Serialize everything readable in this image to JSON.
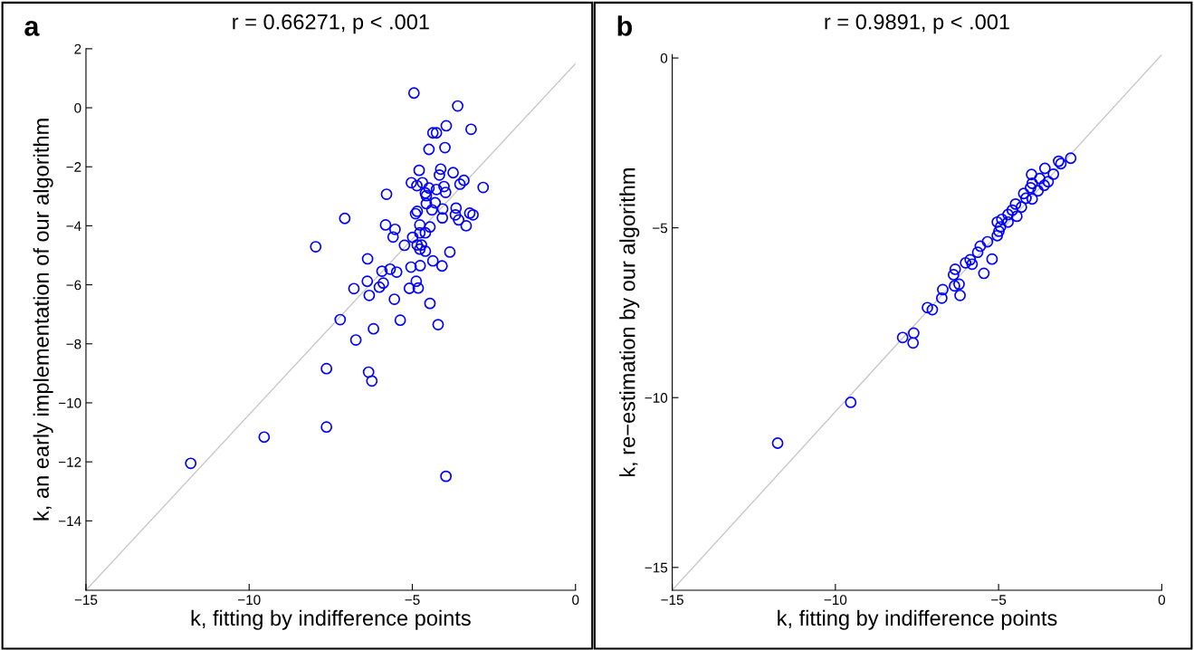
{
  "chart_data": [
    {
      "type": "scatter",
      "title": "r = 0.66271, p < .001",
      "xlabel": "k, fitting by indifference points",
      "ylabel": "k, an early implementation of our algorithm",
      "annotations": [
        "a"
      ],
      "grid": false,
      "xlim": [
        -15,
        0
      ],
      "ylim": [
        -16.35,
        2
      ],
      "xticks": [
        {
          "value": -15,
          "label": "−15"
        },
        {
          "value": -10,
          "label": "−10"
        },
        {
          "value": -5,
          "label": "−5"
        },
        {
          "value": 0,
          "label": "0"
        }
      ],
      "yticks": [
        {
          "value": -14,
          "label": "−14"
        },
        {
          "value": -12,
          "label": "−12"
        },
        {
          "value": -10,
          "label": "−10"
        },
        {
          "value": -8,
          "label": "−8"
        },
        {
          "value": -6,
          "label": "−6"
        },
        {
          "value": -4,
          "label": "−4"
        },
        {
          "value": -2,
          "label": "−2"
        },
        {
          "value": 0,
          "label": "0"
        },
        {
          "value": 2,
          "label": "2"
        }
      ],
      "series": [
        {
          "type": "line",
          "marker": "none",
          "color": "#c8c8c8",
          "x": [
            -15,
            0
          ],
          "values": [
            -16.35,
            1.5
          ]
        },
        {
          "marker": "circle",
          "color": "#0000ff",
          "x": [
            -4.95,
            -3.61,
            -3.96,
            -3.2,
            -4.37,
            -4.26,
            -4.49,
            -4.0,
            -4.79,
            -4.13,
            -4.17,
            -3.75,
            -3.42,
            -3.54,
            -2.83,
            -5.03,
            -4.86,
            -4.69,
            -5.79,
            -4.6,
            -4.49,
            -4.26,
            -4.03,
            -3.98,
            -4.57,
            -4.57,
            -4.3,
            -4.4,
            -4.07,
            -3.66,
            -3.68,
            -3.24,
            -3.14,
            -3.58,
            -3.35,
            -4.08,
            -4.85,
            -4.9,
            -7.07,
            -5.82,
            -5.53,
            -5.59,
            -4.77,
            -4.46,
            -4.77,
            -4.6,
            -4.99,
            -5.24,
            -4.85,
            -4.72,
            -4.77,
            -4.6,
            -3.85,
            -7.96,
            -6.37,
            -5.04,
            -4.76,
            -4.37,
            -4.09,
            -5.93,
            -5.68,
            -5.48,
            -6.38,
            -5.89,
            -6.01,
            -6.79,
            -6.32,
            -4.88,
            -5.09,
            -4.82,
            -5.55,
            -4.46,
            -7.21,
            -5.37,
            -4.21,
            -6.19,
            -6.73,
            -7.63,
            -6.34,
            -6.24,
            -7.63,
            -9.54,
            -11.79,
            -3.97
          ],
          "values": [
            0.5,
            0.06,
            -0.61,
            -0.73,
            -0.85,
            -0.85,
            -1.41,
            -1.35,
            -2.12,
            -2.08,
            -2.28,
            -2.2,
            -2.46,
            -2.59,
            -2.7,
            -2.54,
            -2.64,
            -2.54,
            -2.93,
            -2.89,
            -2.72,
            -2.77,
            -2.67,
            -2.87,
            -2.98,
            -3.25,
            -3.22,
            -3.46,
            -3.43,
            -3.4,
            -3.63,
            -3.57,
            -3.63,
            -3.8,
            -4.0,
            -3.73,
            -3.51,
            -3.59,
            -3.75,
            -3.97,
            -4.12,
            -4.38,
            -3.97,
            -4.04,
            -4.24,
            -4.24,
            -4.39,
            -4.66,
            -4.65,
            -4.65,
            -4.79,
            -4.86,
            -4.89,
            -4.71,
            -5.12,
            -5.4,
            -5.35,
            -5.19,
            -5.36,
            -5.54,
            -5.47,
            -5.57,
            -5.88,
            -5.94,
            -6.08,
            -6.13,
            -6.36,
            -5.88,
            -6.12,
            -6.11,
            -6.49,
            -6.63,
            -7.18,
            -7.2,
            -7.35,
            -7.49,
            -7.87,
            -8.84,
            -8.96,
            -9.26,
            -10.82,
            -11.16,
            -12.05,
            -12.49
          ]
        }
      ]
    },
    {
      "type": "scatter",
      "title": "r = 0.9891, p < .001",
      "xlabel": "k, fitting by indifference points",
      "ylabel": "k, re−estimation by our algorithm",
      "annotations": [
        "b"
      ],
      "grid": false,
      "xlim": [
        -15,
        0
      ],
      "ylim": [
        -15.67,
        0.1
      ],
      "xticks": [
        {
          "value": -15,
          "label": "−15"
        },
        {
          "value": -10,
          "label": "−10"
        },
        {
          "value": -5,
          "label": "−5"
        },
        {
          "value": 0,
          "label": "0"
        }
      ],
      "yticks": [
        {
          "value": -15,
          "label": "−15"
        },
        {
          "value": -10,
          "label": "−10"
        },
        {
          "value": -5,
          "label": "−5"
        },
        {
          "value": 0,
          "label": "0"
        }
      ],
      "series": [
        {
          "type": "line",
          "marker": "none",
          "color": "#c8c8c8",
          "x": [
            -15,
            0
          ],
          "values": [
            -15.67,
            0.1
          ]
        },
        {
          "marker": "circle",
          "color": "#0000ff",
          "x": [
            -2.79,
            -3.16,
            -3.09,
            -3.58,
            -3.32,
            -3.99,
            -3.74,
            -3.48,
            -3.97,
            -3.6,
            -4.02,
            -3.79,
            -4.23,
            -4.16,
            -3.97,
            -4.48,
            -4.3,
            -4.58,
            -4.71,
            -4.44,
            -4.9,
            -5.04,
            -4.71,
            -4.94,
            -4.99,
            -5.04,
            -5.34,
            -5.56,
            -5.64,
            -5.2,
            -5.87,
            -6.01,
            -5.81,
            -5.45,
            -6.33,
            -6.38,
            -6.21,
            -6.35,
            -6.18,
            -6.71,
            -6.74,
            -7.18,
            -7.03,
            -7.6,
            -7.94,
            -7.62,
            -9.53,
            -11.77
          ],
          "values": [
            -2.95,
            -3.04,
            -3.11,
            -3.25,
            -3.42,
            -3.43,
            -3.55,
            -3.64,
            -3.69,
            -3.75,
            -3.82,
            -3.91,
            -3.99,
            -4.13,
            -4.15,
            -4.3,
            -4.39,
            -4.48,
            -4.61,
            -4.66,
            -4.75,
            -4.83,
            -4.83,
            -4.97,
            -5.1,
            -5.23,
            -5.41,
            -5.54,
            -5.72,
            -5.92,
            -5.94,
            -6.03,
            -6.07,
            -6.34,
            -6.22,
            -6.38,
            -6.66,
            -6.71,
            -6.99,
            -6.82,
            -7.07,
            -7.35,
            -7.41,
            -8.1,
            -8.23,
            -8.39,
            -10.14,
            -11.34
          ]
        }
      ]
    }
  ]
}
